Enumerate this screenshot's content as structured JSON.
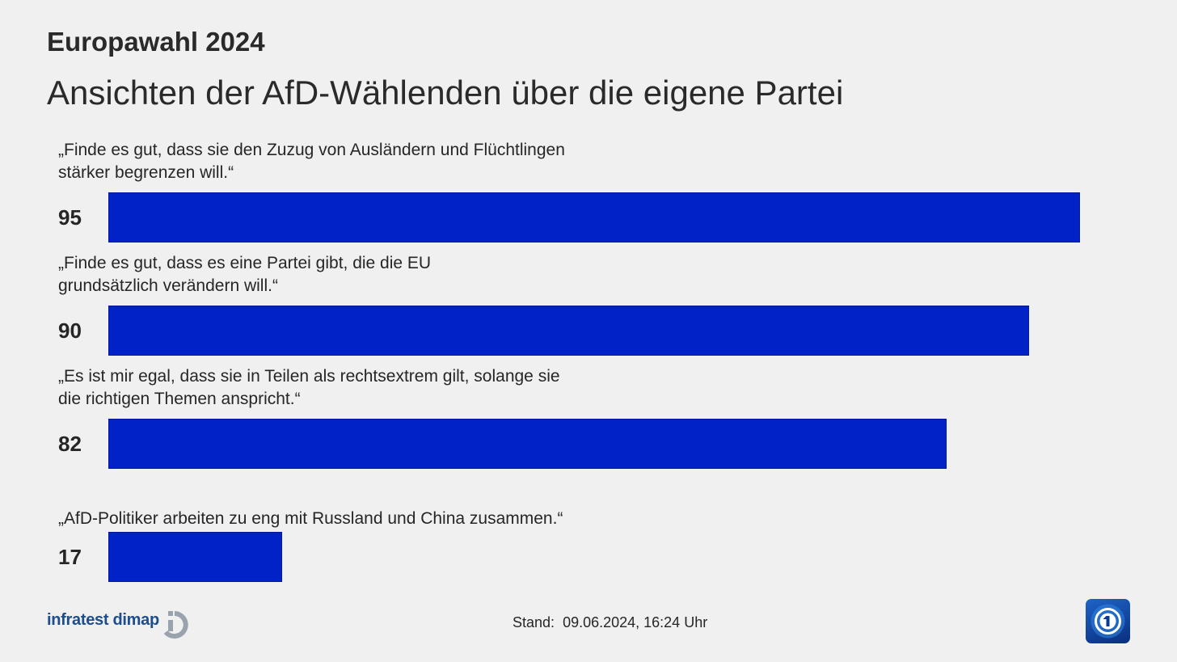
{
  "header": {
    "subtitle": "Europawahl 2024",
    "title": "Ansichten der AfD-Wählenden über die eigene Partei"
  },
  "chart_data": {
    "type": "bar",
    "orientation": "horizontal",
    "categories": [
      "„Finde es gut, dass sie den Zuzug von Ausländern und Flüchtlingen\nstärker begrenzen will.“",
      "„Finde es gut, dass es eine Partei gibt, die die EU\ngrundsätzlich verändern will.“",
      "„Es ist mir egal, dass sie in Teilen als rechtsextrem gilt, solange sie\ndie richtigen Themen anspricht.“",
      "„AfD-Politiker arbeiten zu eng mit Russland und China zusammen.“"
    ],
    "values": [
      95,
      90,
      82,
      17
    ],
    "value_labels": [
      "95",
      "90",
      "82",
      "17"
    ],
    "xlim": [
      0,
      100
    ],
    "bar_color": "#0022c6",
    "grid": false,
    "legend": "none"
  },
  "footer": {
    "source": "infratest dimap",
    "stand_label": "Stand:",
    "stand_value": "09.06.2024, 16:24 Uhr"
  },
  "colors": {
    "background": "#f0f0f0",
    "bar": "#0022c6",
    "text": "#262626",
    "brand": "#1c4d8c"
  },
  "icons": {
    "source_logo": "infratest-dimap-logo-icon",
    "broadcaster_logo": "tagesschau-logo-icon"
  }
}
